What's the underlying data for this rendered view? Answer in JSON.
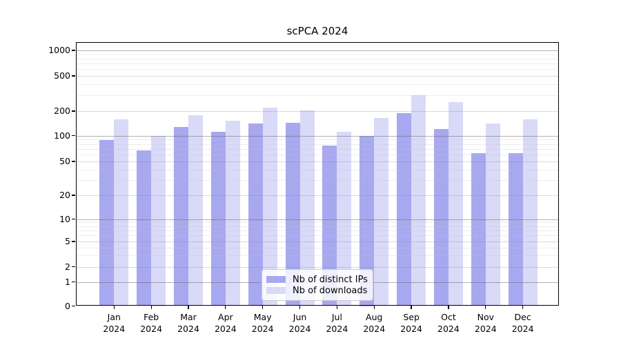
{
  "title": "scPCA 2024",
  "legend": [
    {
      "label": "Nb of distinct IPs",
      "color": "#a8a8f0"
    },
    {
      "label": "Nb of downloads",
      "color": "#d9d9f8"
    }
  ],
  "chart_data": {
    "type": "bar",
    "title": "scPCA 2024",
    "categories": [
      "Jan 2024",
      "Feb 2024",
      "Mar 2024",
      "Apr 2024",
      "May 2024",
      "Jun 2024",
      "Jul 2024",
      "Aug 2024",
      "Sep 2024",
      "Oct 2024",
      "Nov 2024",
      "Dec 2024"
    ],
    "months": [
      "Jan",
      "Feb",
      "Mar",
      "Apr",
      "May",
      "Jun",
      "Jul",
      "Aug",
      "Sep",
      "Oct",
      "Nov",
      "Dec"
    ],
    "year": "2024",
    "series": [
      {
        "name": "Nb of distinct IPs",
        "color": "#a8a8f0",
        "values": [
          88,
          67,
          128,
          112,
          140,
          144,
          76,
          100,
          187,
          120,
          62,
          62
        ]
      },
      {
        "name": "Nb of downloads",
        "color": "#d9d9f8",
        "values": [
          158,
          100,
          179,
          152,
          220,
          203,
          112,
          164,
          300,
          254,
          142,
          158
        ]
      }
    ],
    "xlabel": "",
    "ylabel": "",
    "yscale": "log-like (linear below 1)",
    "y_ticks": [
      0,
      1,
      2,
      5,
      10,
      20,
      50,
      100,
      200,
      500,
      1000
    ],
    "ylim": [
      0,
      1400
    ],
    "grid": "horizontal major and minor",
    "legend_position": "lower center"
  }
}
